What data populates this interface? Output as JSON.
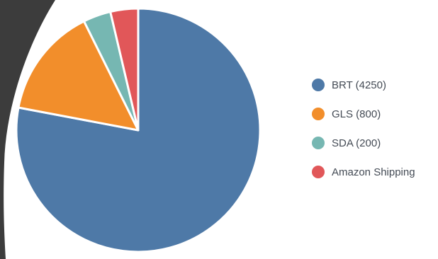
{
  "chart_data": {
    "type": "pie",
    "title": "",
    "legend_position": "right",
    "slices": [
      {
        "label": "BRT (4250)",
        "value": 4250,
        "color": "#4e79a7"
      },
      {
        "label": "GLS (800)",
        "value": 800,
        "color": "#f28e2b"
      },
      {
        "label": "SDA (200)",
        "value": 200,
        "color": "#76b7b2"
      },
      {
        "label": "Amazon Shipping",
        "value": 200,
        "color": "#e15759"
      }
    ]
  },
  "theme": {
    "background": "#ffffff",
    "frame_color": "#3c3c3c",
    "slice_border": "#ffffff"
  }
}
